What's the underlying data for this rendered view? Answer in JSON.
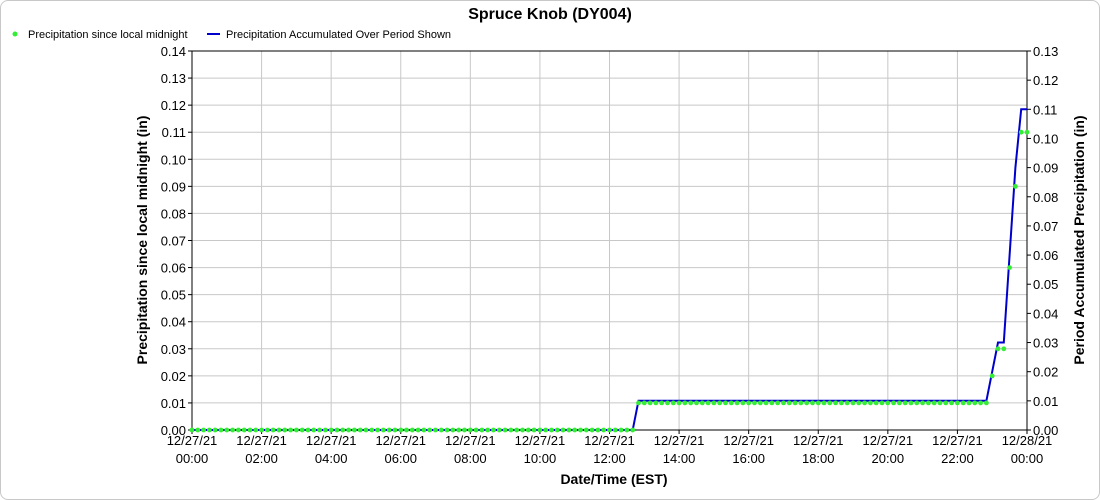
{
  "chart_data": {
    "type": "line",
    "title": "Spruce Knob (DY004)",
    "xlabel": "Date/Time (EST)",
    "ylabel": "Precipitation since local midnight (in)",
    "ylabel_right": "Period Accumulated Precipitation (in)",
    "ylim": [
      0,
      0.14
    ],
    "ylim_right": [
      0,
      0.13
    ],
    "yticks": [
      "0.00",
      "0.01",
      "0.02",
      "0.03",
      "0.04",
      "0.05",
      "0.06",
      "0.07",
      "0.08",
      "0.09",
      "0.10",
      "0.11",
      "0.12",
      "0.13",
      "0.14"
    ],
    "yticks_right": [
      "0.00",
      "0.01",
      "0.02",
      "0.03",
      "0.04",
      "0.05",
      "0.06",
      "0.07",
      "0.08",
      "0.09",
      "0.10",
      "0.11",
      "0.12",
      "0.13"
    ],
    "xlim_hours": [
      0,
      24
    ],
    "xticks": [
      {
        "date": "12/27/21",
        "time": "00:00"
      },
      {
        "date": "12/27/21",
        "time": "02:00"
      },
      {
        "date": "12/27/21",
        "time": "04:00"
      },
      {
        "date": "12/27/21",
        "time": "06:00"
      },
      {
        "date": "12/27/21",
        "time": "08:00"
      },
      {
        "date": "12/27/21",
        "time": "10:00"
      },
      {
        "date": "12/27/21",
        "time": "12:00"
      },
      {
        "date": "12/27/21",
        "time": "14:00"
      },
      {
        "date": "12/27/21",
        "time": "16:00"
      },
      {
        "date": "12/27/21",
        "time": "18:00"
      },
      {
        "date": "12/27/21",
        "time": "20:00"
      },
      {
        "date": "12/27/21",
        "time": "22:00"
      },
      {
        "date": "12/28/21",
        "time": "00:00"
      }
    ],
    "grid": true,
    "legend_position": "top-left",
    "series": [
      {
        "name": "Precipitation since local midnight",
        "kind": "scatter",
        "axis": "left",
        "color": "#33ee33",
        "segments": [
          {
            "from": "00:00",
            "to": "12:40",
            "every_minutes": 10,
            "y": 0.0
          },
          {
            "from": "12:50",
            "to": "22:50",
            "every_minutes": 10,
            "y": 0.01
          }
        ],
        "points": [
          {
            "x": "23:00",
            "y": 0.02
          },
          {
            "x": "23:10",
            "y": 0.03
          },
          {
            "x": "23:20",
            "y": 0.03
          },
          {
            "x": "23:30",
            "y": 0.06
          },
          {
            "x": "23:40",
            "y": 0.09
          },
          {
            "x": "23:50",
            "y": 0.11
          },
          {
            "x": "24:00",
            "y": 0.11
          }
        ]
      },
      {
        "name": "Precipitation Accumulated Over Period Shown",
        "kind": "line",
        "axis": "right",
        "color": "#0000cc",
        "points": [
          {
            "x": "00:00",
            "y": 0.0
          },
          {
            "x": "12:40",
            "y": 0.0
          },
          {
            "x": "12:50",
            "y": 0.01
          },
          {
            "x": "22:50",
            "y": 0.01
          },
          {
            "x": "23:00",
            "y": 0.02
          },
          {
            "x": "23:10",
            "y": 0.03
          },
          {
            "x": "23:20",
            "y": 0.03
          },
          {
            "x": "23:30",
            "y": 0.06
          },
          {
            "x": "23:40",
            "y": 0.09
          },
          {
            "x": "23:50",
            "y": 0.11
          },
          {
            "x": "24:00",
            "y": 0.11
          }
        ]
      }
    ]
  }
}
